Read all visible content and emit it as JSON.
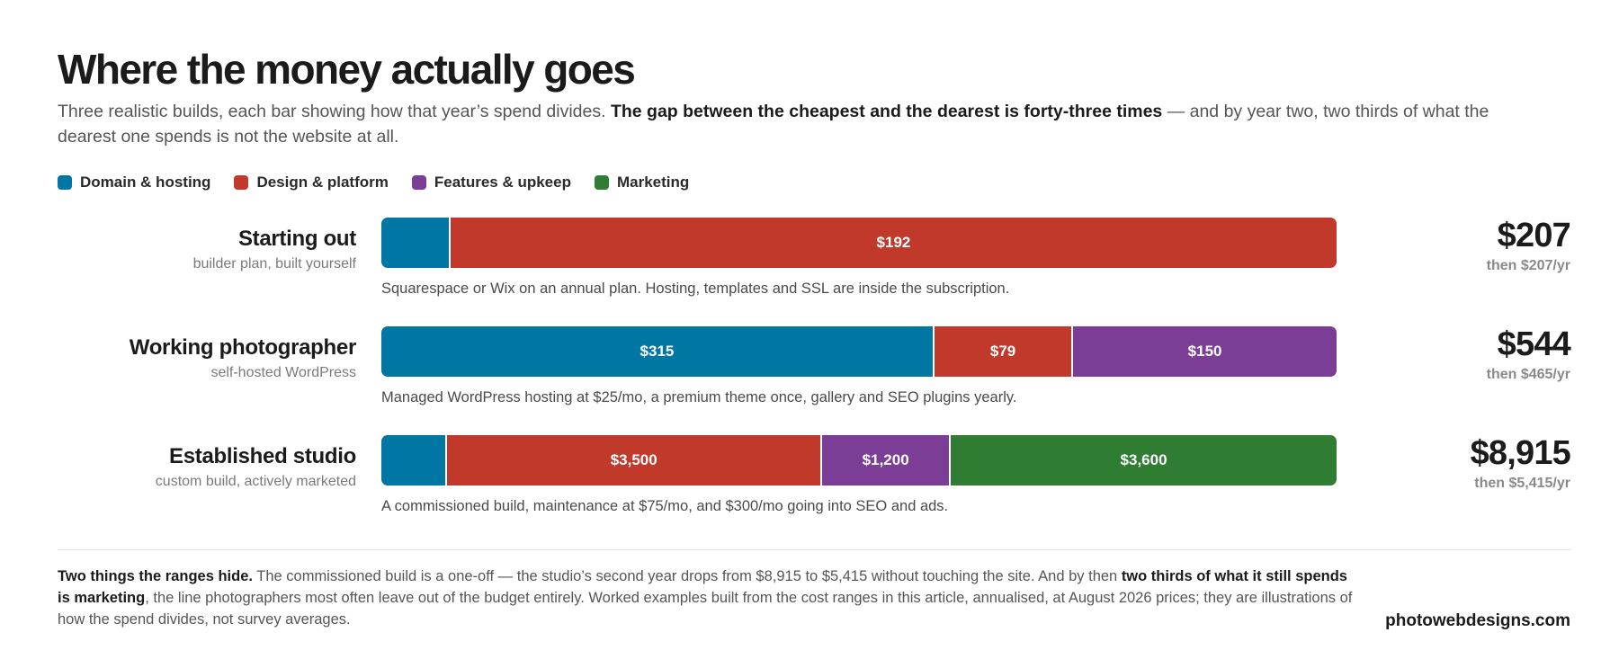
{
  "title": "Where the money actually goes",
  "subtitle": {
    "lead": "Three realistic builds, each bar showing how that year’s spend divides. ",
    "bold": "The gap between the cheapest and the dearest is forty-three times",
    "tail": " — and by year two, two thirds of what the dearest one spends is not the website at all."
  },
  "colors": {
    "domain_hosting": "#0077a3",
    "design_platform": "#c0392b",
    "features_upkeep": "#7b3d96",
    "marketing": "#2e7d32"
  },
  "chart_data": {
    "type": "bar",
    "orientation": "horizontal-stacked",
    "legend_position": "top-left",
    "series_names": [
      "Domain & hosting",
      "Design & platform",
      "Features & upkeep",
      "Marketing"
    ],
    "rows": [
      {
        "name": "Starting out",
        "subtitle": "builder plan, built yourself",
        "note": "Squarespace or Wix on an annual plan. Hosting, templates and SSL are inside the subscription.",
        "total_label": "$207",
        "then_label": "then $207/yr",
        "total": 207,
        "segments": [
          {
            "series": "Domain & hosting",
            "value": 15,
            "label": ""
          },
          {
            "series": "Design & platform",
            "value": 192,
            "label": "$192"
          }
        ]
      },
      {
        "name": "Working photographer",
        "subtitle": "self-hosted WordPress",
        "note": "Managed WordPress hosting at $25/mo, a premium theme once, gallery and SEO plugins yearly.",
        "total_label": "$544",
        "then_label": "then $465/yr",
        "total": 544,
        "segments": [
          {
            "series": "Domain & hosting",
            "value": 315,
            "label": "$315"
          },
          {
            "series": "Design & platform",
            "value": 79,
            "label": "$79"
          },
          {
            "series": "Features & upkeep",
            "value": 150,
            "label": "$150"
          }
        ]
      },
      {
        "name": "Established studio",
        "subtitle": "custom build, actively marketed",
        "note": "A commissioned build, maintenance at $75/mo, and $300/mo going into SEO and ads.",
        "total_label": "$8,915",
        "then_label": "then $5,415/yr",
        "total": 8915,
        "segments": [
          {
            "series": "Domain & hosting",
            "value": 615,
            "label": ""
          },
          {
            "series": "Design & platform",
            "value": 3500,
            "label": "$3,500"
          },
          {
            "series": "Features & upkeep",
            "value": 1200,
            "label": "$1,200"
          },
          {
            "series": "Marketing",
            "value": 3600,
            "label": "$3,600"
          }
        ]
      }
    ]
  },
  "footnote": {
    "bold1": "Two things the ranges hide.",
    "text1": " The commissioned build is a one-off — the studio’s second year drops from $8,915 to $5,415 without touching the site. And by then ",
    "bold2": "two thirds of what it still spends is marketing",
    "text2": ", the line photographers most often leave out of the budget entirely. Worked examples built from the cost ranges in this article, annualised, at August 2026 prices; they are illustrations of how the spend divides, not survey averages."
  },
  "brand": "photowebdesigns.com"
}
